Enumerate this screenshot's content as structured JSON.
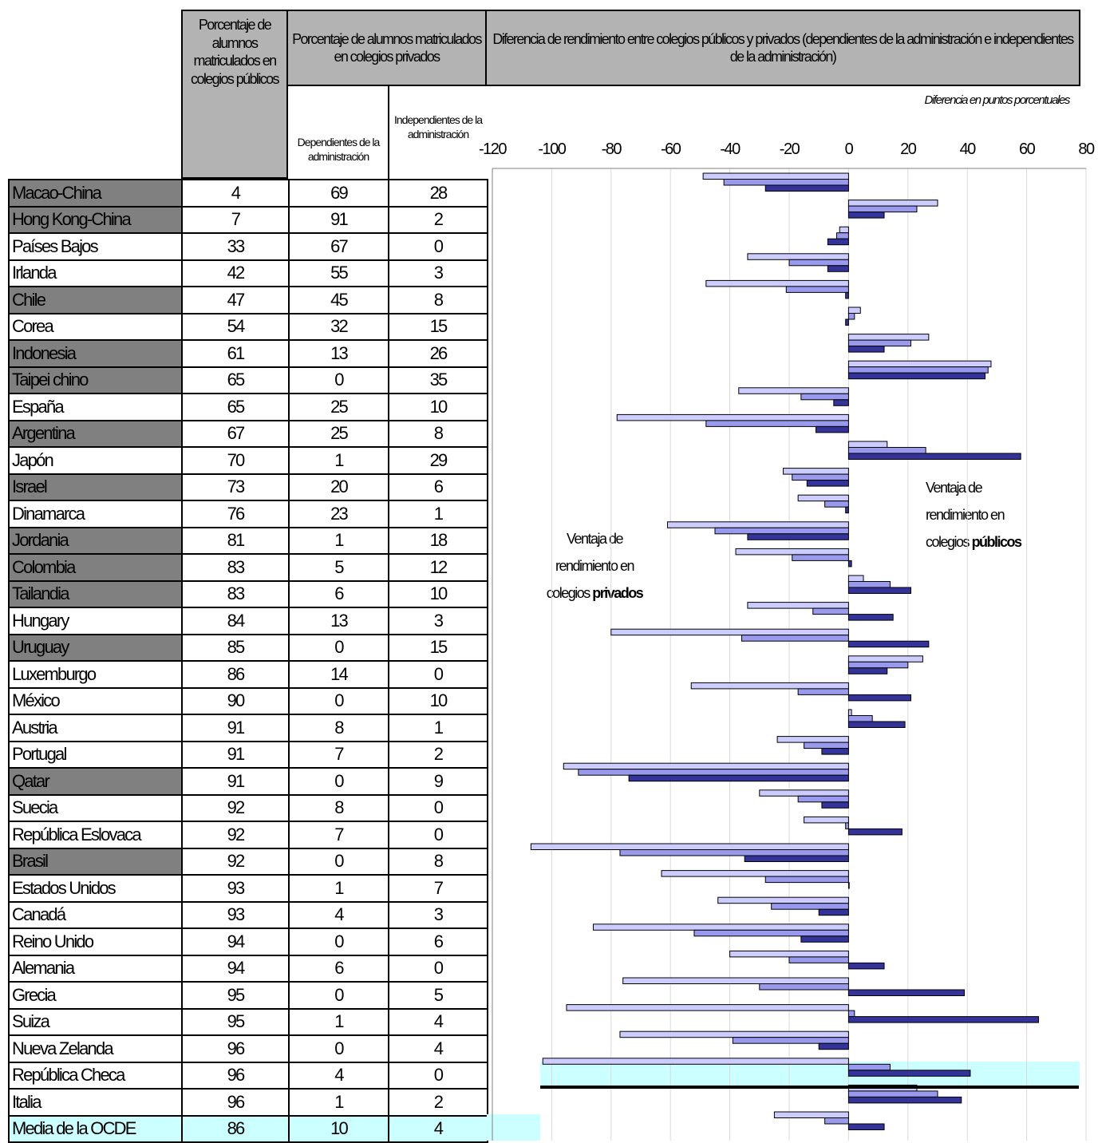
{
  "headers": {
    "public": "Porcentaje de alumnos matriculados en colegios públicos",
    "private": "Porcentaje de alumnos matriculados en colegios privados",
    "dependent": "Dependientes de la administración",
    "independent": "Independientes de la administración",
    "chart_title": "Diferencia de rendimiento entre colegios públicos y privados (dependientes de la administración e independientes de la administración)",
    "chart_subtitle": "Diferencia en puntos porcentuales"
  },
  "annotations": {
    "private_adv_line1": "Ventaja de",
    "private_adv_line2": "rendimiento en",
    "private_adv_line3": "colegios",
    "private_adv_bold": "privados",
    "public_adv_line1": "Ventaja de",
    "public_adv_line2": "rendimiento en",
    "public_adv_line3": "colegios",
    "public_adv_bold": "públicos"
  },
  "colors": {
    "header_grey": "#b3b3b3",
    "partner_grey": "#808080",
    "oecd_highlight": "#ccffff",
    "series_light": "#ccccff",
    "series_mid": "#9999ee",
    "series_dark": "#333399",
    "gridline": "#d9d9d9"
  },
  "table": {
    "rows": [
      {
        "country": "Macao-China",
        "public": "4",
        "dependent": "69",
        "independent": "28",
        "partner": true
      },
      {
        "country": "Hong Kong-China",
        "public": "7",
        "dependent": "91",
        "independent": "2",
        "partner": true
      },
      {
        "country": "Países Bajos",
        "public": "33",
        "dependent": "67",
        "independent": "0",
        "partner": false
      },
      {
        "country": "Irlanda",
        "public": "42",
        "dependent": "55",
        "independent": "3",
        "partner": false
      },
      {
        "country": "Chile",
        "public": "47",
        "dependent": "45",
        "independent": "8",
        "partner": true
      },
      {
        "country": "Corea",
        "public": "54",
        "dependent": "32",
        "independent": "15",
        "partner": false
      },
      {
        "country": "Indonesia",
        "public": "61",
        "dependent": "13",
        "independent": "26",
        "partner": true
      },
      {
        "country": "Taipei chino",
        "public": "65",
        "dependent": "0",
        "independent": "35",
        "partner": true
      },
      {
        "country": "España",
        "public": "65",
        "dependent": "25",
        "independent": "10",
        "partner": false
      },
      {
        "country": "Argentina",
        "public": "67",
        "dependent": "25",
        "independent": "8",
        "partner": true
      },
      {
        "country": "Japón",
        "public": "70",
        "dependent": "1",
        "independent": "29",
        "partner": false
      },
      {
        "country": "Israel",
        "public": "73",
        "dependent": "20",
        "independent": "6",
        "partner": true
      },
      {
        "country": "Dinamarca",
        "public": "76",
        "dependent": "23",
        "independent": "1",
        "partner": false
      },
      {
        "country": "Jordania",
        "public": "81",
        "dependent": "1",
        "independent": "18",
        "partner": true
      },
      {
        "country": "Colombia",
        "public": "83",
        "dependent": "5",
        "independent": "12",
        "partner": true
      },
      {
        "country": "Tailandia",
        "public": "83",
        "dependent": "6",
        "independent": "10",
        "partner": true
      },
      {
        "country": "Hungary",
        "public": "84",
        "dependent": "13",
        "independent": "3",
        "partner": false
      },
      {
        "country": "Uruguay",
        "public": "85",
        "dependent": "0",
        "independent": "15",
        "partner": true
      },
      {
        "country": "Luxemburgo",
        "public": "86",
        "dependent": "14",
        "independent": "0",
        "partner": false
      },
      {
        "country": "México",
        "public": "90",
        "dependent": "0",
        "independent": "10",
        "partner": false
      },
      {
        "country": "Austria",
        "public": "91",
        "dependent": "8",
        "independent": "1",
        "partner": false
      },
      {
        "country": "Portugal",
        "public": "91",
        "dependent": "7",
        "independent": "2",
        "partner": false
      },
      {
        "country": "Qatar",
        "public": "91",
        "dependent": "0",
        "independent": "9",
        "partner": true
      },
      {
        "country": "Suecia",
        "public": "92",
        "dependent": "8",
        "independent": "0",
        "partner": false
      },
      {
        "country": "República Eslovaca",
        "public": "92",
        "dependent": "7",
        "independent": "0",
        "partner": false
      },
      {
        "country": "Brasil",
        "public": "92",
        "dependent": "0",
        "independent": "8",
        "partner": true
      },
      {
        "country": "Estados Unidos",
        "public": "93",
        "dependent": "1",
        "independent": "7",
        "partner": false
      },
      {
        "country": "Canadá",
        "public": "93",
        "dependent": "4",
        "independent": "3",
        "partner": false
      },
      {
        "country": "Reino Unido",
        "public": "94",
        "dependent": "0",
        "independent": "6",
        "partner": false
      },
      {
        "country": "Alemania",
        "public": "94",
        "dependent": "6",
        "independent": "0",
        "partner": false
      },
      {
        "country": "Grecia",
        "public": "95",
        "dependent": "0",
        "independent": "5",
        "partner": false
      },
      {
        "country": "Suiza",
        "public": "95",
        "dependent": "1",
        "independent": "4",
        "partner": false
      },
      {
        "country": "Nueva Zelanda",
        "public": "96",
        "dependent": "0",
        "independent": "4",
        "partner": false
      },
      {
        "country": "República Checa",
        "public": "96",
        "dependent": "4",
        "independent": "0",
        "partner": false
      },
      {
        "country": "Italia",
        "public": "96",
        "dependent": "1",
        "independent": "2",
        "partner": false
      },
      {
        "country": "Media de la OCDE",
        "public": "86",
        "dependent": "10",
        "independent": "4",
        "partner": false,
        "oecd": true
      }
    ]
  },
  "chart_data": {
    "type": "bar",
    "orientation": "horizontal",
    "xlim": [
      -120,
      80
    ],
    "xticks": [
      -120,
      -100,
      -80,
      -60,
      -40,
      -20,
      0,
      20,
      40,
      60,
      80
    ],
    "grid": true,
    "title": "Diferencia de rendimiento entre colegios públicos y privados (dependientes de la administración e independientes de la administración)",
    "subtitle": "Diferencia en puntos porcentuales",
    "categories": [
      "Macao-China",
      "Hong Kong-China",
      "Países Bajos",
      "Irlanda",
      "Chile",
      "Corea",
      "Indonesia",
      "Taipei chino",
      "España",
      "Argentina",
      "Japón",
      "Israel",
      "Dinamarca",
      "Jordania",
      "Colombia",
      "Tailandia",
      "Hungary",
      "Uruguay",
      "Luxemburgo",
      "México",
      "Austria",
      "Portugal",
      "Qatar",
      "Suecia",
      "República Eslovaca",
      "Brasil",
      "Estados Unidos",
      "Canadá",
      "Reino Unido",
      "Alemania",
      "Grecia",
      "Suiza",
      "Nueva Zelanda",
      "República Checa",
      "Italia",
      "Media de la OCDE"
    ],
    "series": [
      {
        "values": [
          -49,
          30,
          -3,
          -34,
          -48,
          4,
          27,
          48,
          -37,
          -78,
          13,
          -22,
          -17,
          -61,
          -38,
          5,
          -34,
          -80,
          25,
          -53,
          1,
          -24,
          -96,
          -30,
          -15,
          -107,
          -63,
          -44,
          -86,
          -40,
          -76,
          -95,
          -77,
          -103,
          23,
          -25
        ]
      },
      {
        "values": [
          -42,
          23,
          -4,
          -20,
          -21,
          2,
          21,
          47,
          -16,
          -48,
          26,
          -19,
          -8,
          -45,
          -19,
          14,
          -12,
          -36,
          20,
          -17,
          8,
          -15,
          -91,
          -17,
          -1,
          -77,
          -28,
          -26,
          -52,
          -20,
          -30,
          2,
          -39,
          14,
          30,
          -8
        ]
      },
      {
        "values": [
          -28,
          12,
          -7,
          -7,
          -1,
          -1,
          12,
          46,
          -5,
          -11,
          58,
          -14,
          -1,
          -34,
          1,
          21,
          15,
          27,
          13,
          21,
          19,
          -9,
          -74,
          -9,
          18,
          -35,
          0,
          -10,
          -16,
          12,
          39,
          64,
          -10,
          41,
          38,
          12
        ]
      }
    ]
  }
}
